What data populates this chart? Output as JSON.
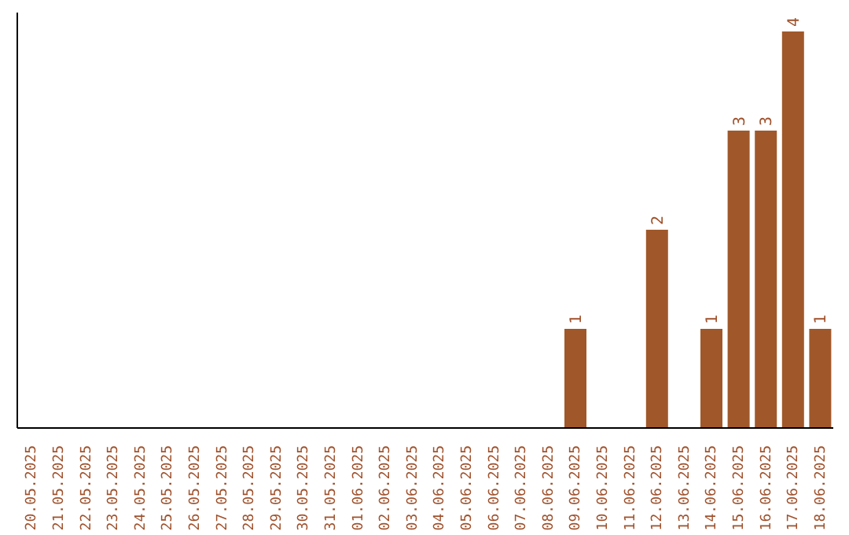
{
  "chart_data": {
    "type": "bar",
    "categories": [
      "20.05.2025",
      "21.05.2025",
      "22.05.2025",
      "23.05.2025",
      "24.05.2025",
      "25.05.2025",
      "26.05.2025",
      "27.05.2025",
      "28.05.2025",
      "29.05.2025",
      "30.05.2025",
      "31.05.2025",
      "01.06.2025",
      "02.06.2025",
      "03.06.2025",
      "04.06.2025",
      "05.06.2025",
      "06.06.2025",
      "07.06.2025",
      "08.06.2025",
      "09.06.2025",
      "10.06.2025",
      "11.06.2025",
      "12.06.2025",
      "13.06.2025",
      "14.06.2025",
      "15.06.2025",
      "16.06.2025",
      "17.06.2025",
      "18.06.2025"
    ],
    "values": [
      null,
      null,
      null,
      null,
      null,
      null,
      null,
      null,
      null,
      null,
      null,
      null,
      null,
      null,
      null,
      null,
      null,
      null,
      null,
      null,
      1,
      null,
      null,
      2,
      null,
      1,
      3,
      3,
      4,
      1
    ],
    "color": "#a0582a",
    "data_labels": true,
    "tick_labels": "x",
    "grid": false
  }
}
